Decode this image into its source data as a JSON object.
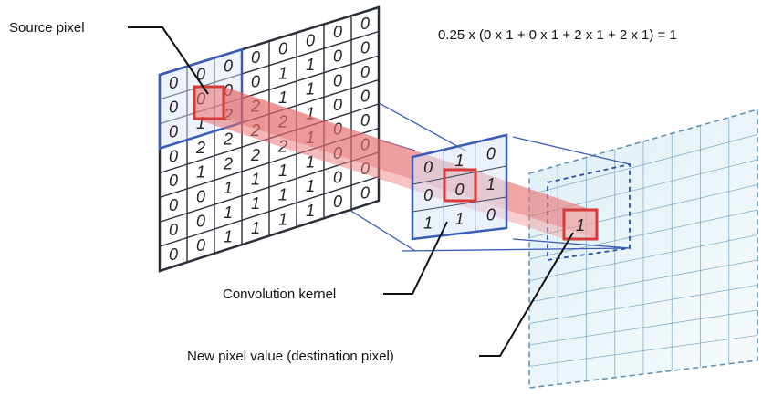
{
  "labels": {
    "source_pixel": "Source pixel",
    "convolution_kernel": "Convolution kernel",
    "destination_pixel": "New pixel value (destination pixel)"
  },
  "formula": "0.25 x (0 x 1 + 0 x 1 + 2 x 1 + 2 x 1) = 1",
  "source_grid": [
    [
      "0",
      "0",
      "0",
      "0",
      "0",
      "0",
      "0",
      "0"
    ],
    [
      "0",
      "0",
      "0",
      "0",
      "1",
      "1",
      "0",
      "0"
    ],
    [
      "0",
      "1",
      "2",
      "2",
      "1",
      "1",
      "0",
      "0"
    ],
    [
      "0",
      "2",
      "2",
      "2",
      "2",
      "1",
      "0",
      "0"
    ],
    [
      "0",
      "1",
      "2",
      "2",
      "2",
      "1",
      "0",
      "0"
    ],
    [
      "0",
      "0",
      "1",
      "1",
      "1",
      "1",
      "0",
      "0"
    ],
    [
      "0",
      "0",
      "1",
      "1",
      "1",
      "1",
      "0",
      "0"
    ],
    [
      "0",
      "0",
      "1",
      "1",
      "1",
      "1",
      "0",
      "0"
    ]
  ],
  "kernel_grid": [
    [
      "0",
      "1",
      "0"
    ],
    [
      "0",
      "0",
      "1"
    ],
    [
      "1",
      "1",
      "0"
    ]
  ],
  "kernel_center_value": "0",
  "destination_value": "1",
  "colors": {
    "grid_line": "#2a2f3a",
    "source_window": "#3a5bb8",
    "highlight": "#d63a3a",
    "beam": "#f08080",
    "destination_grid": "#5a8fb0"
  }
}
